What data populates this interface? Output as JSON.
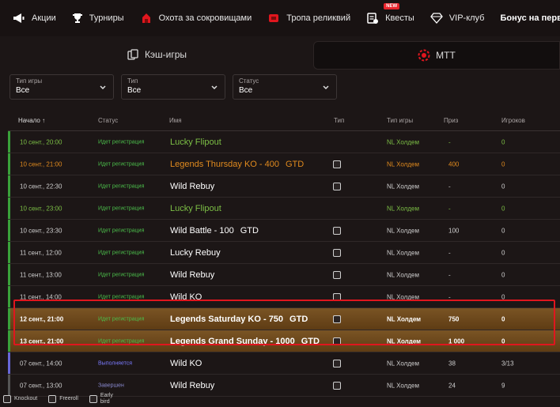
{
  "nav": {
    "items": [
      {
        "label": "Акции",
        "icon": "megaphone-icon"
      },
      {
        "label": "Турниры",
        "icon": "trophy-icon"
      },
      {
        "label": "Охота за сокровищами",
        "icon": "treasure-icon"
      },
      {
        "label": "Тропа реликвий",
        "icon": "relic-icon"
      },
      {
        "label": "Квесты",
        "icon": "quests-icon",
        "badge": "NEW"
      },
      {
        "label": "VIP-клуб",
        "icon": "diamond-icon"
      }
    ],
    "bonus": "Бонус на первый депозит"
  },
  "tabs": {
    "cash": "Кэш-игры",
    "mtt": "МТТ"
  },
  "filters": [
    {
      "label": "Тип игры",
      "value": "Все"
    },
    {
      "label": "Тип",
      "value": "Все"
    },
    {
      "label": "Статус",
      "value": "Все"
    }
  ],
  "table": {
    "headers": {
      "start": "Начало",
      "sort_arrow": "↑",
      "status": "Статус",
      "name": "Имя",
      "type": "Тип",
      "game_type": "Тип игры",
      "prize": "Приз",
      "players": "Игроков"
    },
    "rows": [
      {
        "start": "10 сент., 20:00",
        "status": "Идет регистрация",
        "name": "Lucky Flipout",
        "gtd": "",
        "game_type": "NL Холдем",
        "prize": "-",
        "players": "0",
        "style": "green",
        "icons": 0
      },
      {
        "start": "10 сент., 21:00",
        "status": "Идет регистрация",
        "name": "Legends Thursday KO - 400",
        "gtd": "GTD",
        "game_type": "NL Холдем",
        "prize": "400",
        "players": "0",
        "style": "orange",
        "icons": 2
      },
      {
        "start": "10 сент., 22:30",
        "status": "Идет регистрация",
        "name": "Wild Rebuy",
        "gtd": "",
        "game_type": "NL Холдем",
        "prize": "-",
        "players": "0",
        "style": "",
        "icons": 1
      },
      {
        "start": "10 сент., 23:00",
        "status": "Идет регистрация",
        "name": "Lucky Flipout",
        "gtd": "",
        "game_type": "NL Холдем",
        "prize": "-",
        "players": "0",
        "style": "green",
        "icons": 0
      },
      {
        "start": "10 сент., 23:30",
        "status": "Идет регистрация",
        "name": "Wild Battle - 100",
        "gtd": "GTD",
        "game_type": "NL Холдем",
        "prize": "100",
        "players": "0",
        "style": "",
        "icons": 1
      },
      {
        "start": "11 сент., 12:00",
        "status": "Идет регистрация",
        "name": "Lucky Rebuy",
        "gtd": "",
        "game_type": "NL Холдем",
        "prize": "-",
        "players": "0",
        "style": "",
        "icons": 1
      },
      {
        "start": "11 сент., 13:00",
        "status": "Идет регистрация",
        "name": "Wild Rebuy",
        "gtd": "",
        "game_type": "NL Холдем",
        "prize": "-",
        "players": "0",
        "style": "",
        "icons": 1
      },
      {
        "start": "11 сент., 14:00",
        "status": "Идет регистрация",
        "name": "Wild KO",
        "gtd": "",
        "game_type": "NL Холдем",
        "prize": "-",
        "players": "0",
        "style": "",
        "icons": 2
      },
      {
        "start": "12 сент., 21:00",
        "status": "Идет регистрация",
        "name": "Legends Saturday KO - 750",
        "gtd": "GTD",
        "game_type": "NL Холдем",
        "prize": "750",
        "players": "0",
        "style": "hl bold",
        "icons": 2
      },
      {
        "start": "13 сент., 21:00",
        "status": "Идет регистрация",
        "name": "Legends Grand Sunday - 1000",
        "gtd": "GTD",
        "game_type": "NL Холдем",
        "prize": "1 000",
        "players": "0",
        "style": "hl bold",
        "icons": 1
      },
      {
        "start": "07 сент., 14:00",
        "status": "Выполняется",
        "name": "Wild KO",
        "gtd": "",
        "game_type": "NL Холдем",
        "prize": "38",
        "players": "3/13",
        "style": "running",
        "icons": 2
      },
      {
        "start": "07 сент., 13:00",
        "status": "Завершен",
        "name": "Wild Rebuy",
        "gtd": "",
        "game_type": "NL Холдем",
        "prize": "24",
        "players": "9",
        "style": "done",
        "icons": 1
      }
    ]
  },
  "legend": {
    "knockout": "Knockout",
    "freeroll": "Freeroll",
    "early_bird": "Early bird"
  },
  "colors": {
    "accent_red": "#e0161e",
    "green": "#4bbd4b",
    "orange": "#e08a1e"
  }
}
